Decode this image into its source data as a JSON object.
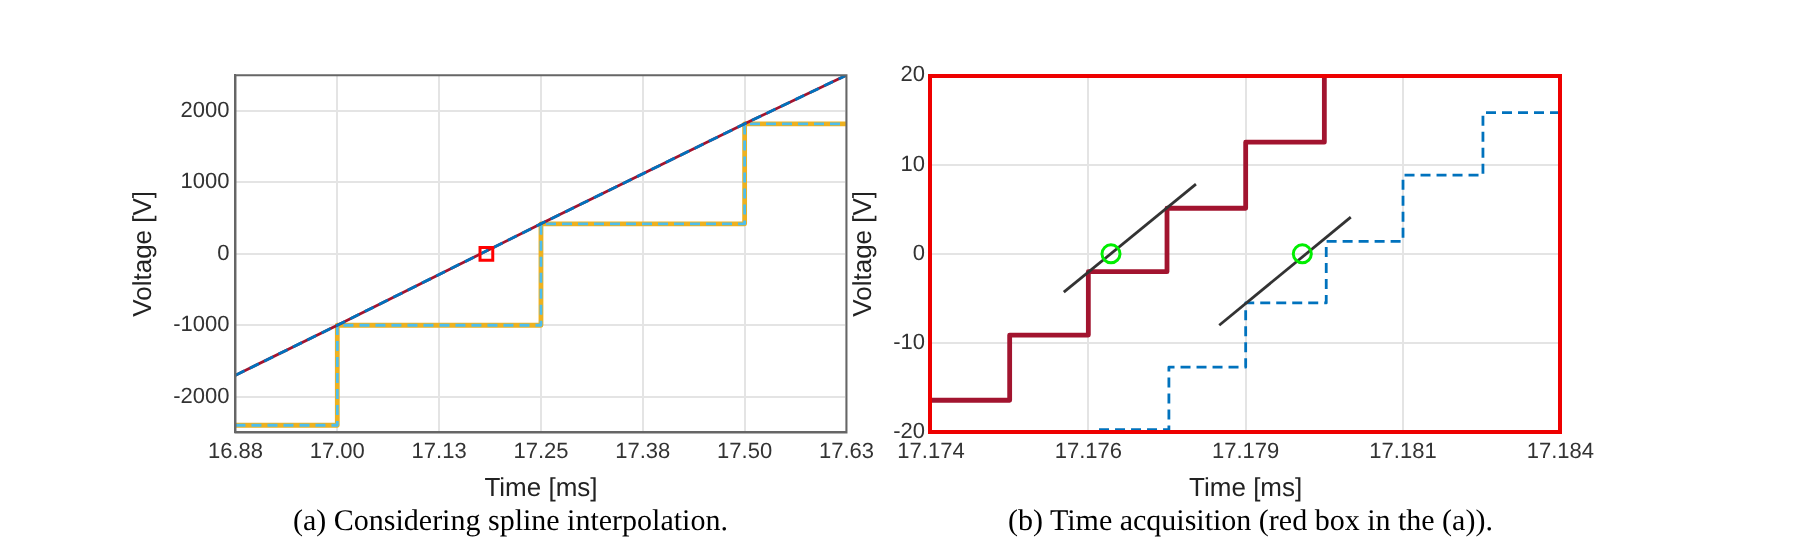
{
  "chart_data": [
    {
      "type": "line",
      "xlabel": "Time [ms]",
      "ylabel": "Voltage [V]",
      "annotations": [
        "(a) Considering spline interpolation."
      ],
      "grid": true,
      "xlim": [
        16.875,
        17.625
      ],
      "xticks": [
        {
          "value": 16.875,
          "label": "16.88"
        },
        {
          "value": 17.0,
          "label": "17.00"
        },
        {
          "value": 17.125,
          "label": "17.13"
        },
        {
          "value": 17.25,
          "label": "17.25"
        },
        {
          "value": 17.375,
          "label": "17.38"
        },
        {
          "value": 17.5,
          "label": "17.50"
        },
        {
          "value": 17.625,
          "label": "17.63"
        }
      ],
      "ylim": [
        -2500,
        2500
      ],
      "yticks": [
        -2000,
        -1000,
        0,
        1000,
        2000
      ],
      "series": [
        {
          "type": "step",
          "color": "#edb120",
          "line_style": "solid",
          "x": [
            16.875,
            17.0,
            17.25,
            17.5,
            17.625
          ],
          "values": [
            -2400,
            -1000,
            420,
            1820,
            1820
          ]
        },
        {
          "type": "step",
          "color": "#4dbeee",
          "line_style": "dashed",
          "x": [
            16.875,
            17.0,
            17.25,
            17.5,
            17.625
          ],
          "values": [
            -2400,
            -1000,
            420,
            1820,
            1820
          ]
        },
        {
          "type": "line",
          "color": "#a2142f",
          "line_style": "solid",
          "x": [
            16.875,
            17.0,
            17.25,
            17.5,
            17.625
          ],
          "values": [
            -1700,
            -1000,
            420,
            1820,
            2500
          ]
        },
        {
          "type": "line",
          "color": "#0072bd",
          "line_style": "dashed",
          "x": [
            16.875,
            17.0,
            17.25,
            17.5,
            17.625
          ],
          "values": [
            -1700,
            -1000,
            420,
            1820,
            2500
          ]
        },
        {
          "type": "scatter",
          "color": "#ff0000",
          "marker": "square",
          "x": [
            17.183
          ],
          "values": [
            0
          ]
        }
      ]
    },
    {
      "type": "line",
      "xlabel": "Time [ms]",
      "ylabel": "Voltage [V]",
      "annotations": [
        "(b) Time acquisition (red box in the (a))."
      ],
      "grid": true,
      "xlim": [
        17.174,
        17.184
      ],
      "xticks": [
        17.174,
        {
          "value": 17.1765,
          "label": "17.176"
        },
        17.179,
        {
          "value": 17.1815,
          "label": "17.181"
        },
        17.184
      ],
      "ylim": [
        -20,
        20
      ],
      "yticks": [
        -20,
        -10,
        0,
        10,
        20
      ],
      "series": [
        {
          "type": "step",
          "color": "#a2142f",
          "line_style": "solid",
          "x": [
            17.174,
            17.17525,
            17.1765,
            17.17775,
            17.179,
            17.18025
          ],
          "values": [
            -16.4,
            -9.1,
            -2.0,
            5.1,
            12.5,
            20
          ]
        },
        {
          "type": "step",
          "color": "#0072bd",
          "line_style": "dashed",
          "x": [
            17.17667,
            17.17778,
            17.179,
            17.18028,
            17.1815,
            17.18277,
            17.184
          ],
          "values": [
            -19.7,
            -12.7,
            -5.5,
            1.4,
            8.8,
            15.8,
            15.8
          ]
        },
        {
          "type": "line",
          "color": "#333333",
          "line_style": "solid",
          "x": [
            17.17611,
            17.17821
          ],
          "values": [
            -4.3,
            7.8
          ]
        },
        {
          "type": "line",
          "color": "#333333",
          "line_style": "solid",
          "x": [
            17.17858,
            17.18067
          ],
          "values": [
            -8.0,
            4.1
          ]
        },
        {
          "type": "scatter",
          "color": "#00ee00",
          "marker": "circle",
          "x": [
            17.17686,
            17.1799
          ],
          "values": [
            0,
            0
          ]
        }
      ]
    }
  ]
}
